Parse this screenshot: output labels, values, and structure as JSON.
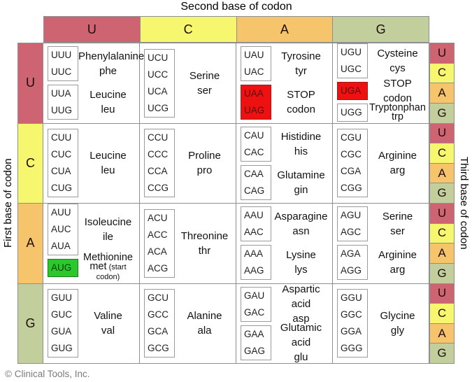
{
  "title": "Second base of codon",
  "left_axis_label": "First base of codon",
  "right_axis_label": "Third base of codon",
  "footer": "© Clinical Tools, Inc.",
  "bases": [
    "U",
    "C",
    "A",
    "G"
  ],
  "base_colors": {
    "U": "#ce6371",
    "C": "#f7f66f",
    "A": "#f5c46b",
    "G": "#c3ce9d"
  },
  "highlight_colors": {
    "stop": "#ee1111",
    "start": "#2bc82b"
  },
  "rows": [
    {
      "first_base": "U",
      "cells": [
        {
          "groups": [
            {
              "codons": [
                "UUU",
                "UUC"
              ],
              "name": "Phenylalanine",
              "abbr": "phe"
            },
            {
              "codons": [
                "UUA",
                "UUG"
              ],
              "name": "Leucine",
              "abbr": "leu"
            }
          ]
        },
        {
          "groups": [
            {
              "codons": [
                "UCU",
                "UCC",
                "UCA",
                "UCG"
              ],
              "name": "Serine",
              "abbr": "ser"
            }
          ]
        },
        {
          "groups": [
            {
              "codons": [
                "UAU",
                "UAC"
              ],
              "name": "Tyrosine",
              "abbr": "tyr"
            },
            {
              "codons": [
                "UAA",
                "UAG"
              ],
              "highlight": "stop",
              "name": "STOP codon"
            }
          ]
        },
        {
          "groups": [
            {
              "codons": [
                "UGU",
                "UGC"
              ],
              "name": "Cysteine",
              "abbr": "cys"
            },
            {
              "codons": [
                "UGA"
              ],
              "highlight": "stop",
              "name": "STOP codon"
            },
            {
              "codons": [
                "UGG"
              ],
              "name": "Tryptonphan",
              "abbr": "trp",
              "tight": true
            }
          ]
        }
      ]
    },
    {
      "first_base": "C",
      "cells": [
        {
          "groups": [
            {
              "codons": [
                "CUU",
                "CUC",
                "CUA",
                "CUG"
              ],
              "name": "Leucine",
              "abbr": "leu"
            }
          ]
        },
        {
          "groups": [
            {
              "codons": [
                "CCU",
                "CCC",
                "CCA",
                "CCG"
              ],
              "name": "Proline",
              "abbr": "pro"
            }
          ]
        },
        {
          "groups": [
            {
              "codons": [
                "CAU",
                "CAC"
              ],
              "name": "Histidine",
              "abbr": "his"
            },
            {
              "codons": [
                "CAA",
                "CAG"
              ],
              "name": "Glutamine",
              "abbr": "gin"
            }
          ]
        },
        {
          "groups": [
            {
              "codons": [
                "CGU",
                "CGC",
                "CGA",
                "CGG"
              ],
              "name": "Arginine",
              "abbr": "arg"
            }
          ]
        }
      ]
    },
    {
      "first_base": "A",
      "cells": [
        {
          "groups": [
            {
              "codons": [
                "AUU",
                "AUC",
                "AUA"
              ],
              "name": "Isoleucine",
              "abbr": "ile"
            },
            {
              "codons": [
                "AUG"
              ],
              "highlight": "start",
              "name": "Methionine",
              "abbr": "met",
              "abbr_note": "(start codon)",
              "tight": true
            }
          ]
        },
        {
          "groups": [
            {
              "codons": [
                "ACU",
                "ACC",
                "ACA",
                "ACG"
              ],
              "name": "Threonine",
              "abbr": "thr"
            }
          ]
        },
        {
          "groups": [
            {
              "codons": [
                "AAU",
                "AAC"
              ],
              "name": "Asparagine",
              "abbr": "asn"
            },
            {
              "codons": [
                "AAA",
                "AAG"
              ],
              "name": "Lysine",
              "abbr": "lys"
            }
          ]
        },
        {
          "groups": [
            {
              "codons": [
                "AGU",
                "AGC"
              ],
              "name": "Serine",
              "abbr": "ser"
            },
            {
              "codons": [
                "AGA",
                "AGG"
              ],
              "name": "Arginine",
              "abbr": "arg"
            }
          ]
        }
      ]
    },
    {
      "first_base": "G",
      "cells": [
        {
          "groups": [
            {
              "codons": [
                "GUU",
                "GUC",
                "GUA",
                "GUG"
              ],
              "name": "Valine",
              "abbr": "val"
            }
          ]
        },
        {
          "groups": [
            {
              "codons": [
                "GCU",
                "GCC",
                "GCA",
                "GCG"
              ],
              "name": "Alanine",
              "abbr": "ala"
            }
          ]
        },
        {
          "groups": [
            {
              "codons": [
                "GAU",
                "GAC"
              ],
              "name": "Aspartic acid",
              "abbr": "asp"
            },
            {
              "codons": [
                "GAA",
                "GAG"
              ],
              "name": "Glutamic acid",
              "abbr": "glu"
            }
          ]
        },
        {
          "groups": [
            {
              "codons": [
                "GGU",
                "GGC",
                "GGA",
                "GGG"
              ],
              "name": "Glycine",
              "abbr": "gly"
            }
          ]
        }
      ]
    }
  ]
}
